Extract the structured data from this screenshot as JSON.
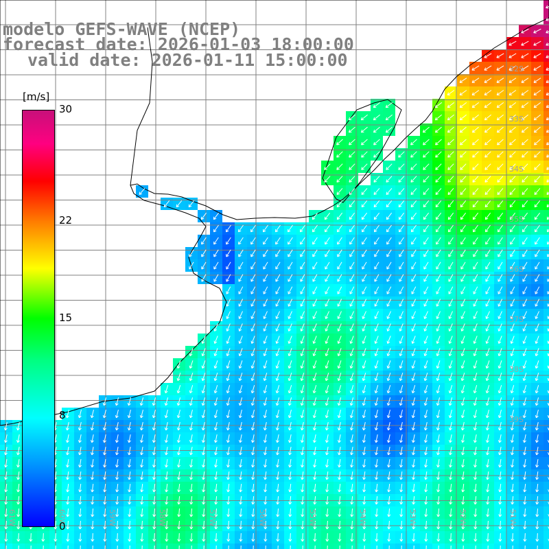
{
  "titles": {
    "line1": "modelo GEFS-WAVE (NCEP)",
    "line2": "forecast date: 2026-01-03 18:00:00",
    "line3": "valid date: 2026-01-11 15:00:00"
  },
  "colorbar": {
    "unit": "[m/s]",
    "ticks": [
      "30",
      "22",
      "15",
      "8",
      "0"
    ],
    "tick_values": [
      30,
      22,
      15,
      8,
      0
    ],
    "range": [
      0,
      30
    ],
    "palette": [
      "#0000ff",
      "#00a0ff",
      "#00ffff",
      "#00ff80",
      "#00ff00",
      "#ffff00",
      "#ff8000",
      "#ff0000",
      "#c8107a"
    ]
  },
  "map": {
    "land_color": "#ffffff",
    "coastline_color": "#000000",
    "grid_color": "#808080",
    "arrow_color": "#ffffff",
    "lat_labels": [
      "32S",
      "33S",
      "34S",
      "35S",
      "36S",
      "37S",
      "38S",
      "39S"
    ],
    "lon_labels": [
      "61W",
      "60W",
      "59W",
      "58W",
      "57W",
      "56W",
      "55W",
      "54W",
      "53W",
      "52W",
      "51W"
    ]
  }
}
